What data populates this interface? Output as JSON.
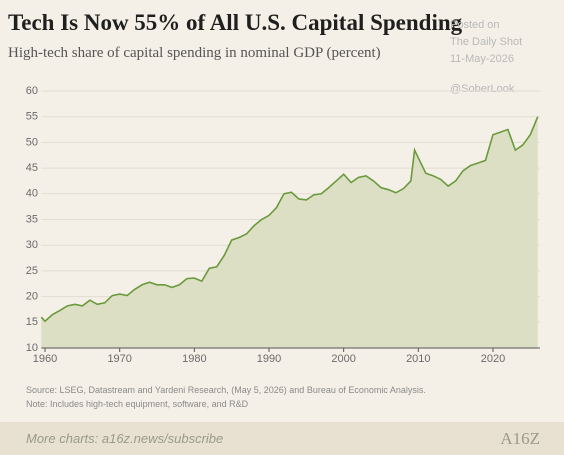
{
  "chart_data": {
    "type": "area",
    "title": "Tech Is Now 55% of All U.S. Capital Spending",
    "subtitle": "High-tech share of capital spending in nominal GDP (percent)",
    "watermark": [
      "Posted on",
      "The Daily Shot",
      "11-May-2026",
      "@SoberLook"
    ],
    "source": "Source: LSEG, Datastream and Yardeni Research, (May 5, 2026) and Bureau of Economic Analysis.",
    "note": "Note: Includes high-tech equipment, software, and R&D",
    "footer": "More charts: a16z.news/subscribe",
    "logo": "A16Z",
    "x": [
      1959.5,
      1960,
      1961,
      1962,
      1963,
      1964,
      1965,
      1966,
      1967,
      1968,
      1969,
      1970,
      1971,
      1972,
      1973,
      1974,
      1975,
      1976,
      1977,
      1978,
      1979,
      1980,
      1981,
      1982,
      1983,
      1984,
      1985,
      1986,
      1987,
      1988,
      1989,
      1990,
      1991,
      1992,
      1993,
      1994,
      1995,
      1996,
      1997,
      1998,
      1999,
      2000,
      2001,
      2002,
      2003,
      2004,
      2005,
      2006,
      2007,
      2008,
      2009,
      2009.5,
      2010,
      2011,
      2012,
      2013,
      2014,
      2015,
      2016,
      2017,
      2018,
      2019,
      2020,
      2021,
      2022,
      2022.5,
      2023,
      2024,
      2025,
      2026
    ],
    "values": [
      16,
      15.2,
      16.5,
      17.3,
      18.2,
      18.5,
      18.2,
      19.3,
      18.5,
      18.8,
      20.2,
      20.5,
      20.2,
      21.4,
      22.3,
      22.8,
      22.3,
      22.3,
      21.8,
      22.3,
      23.5,
      23.6,
      23,
      25.5,
      25.8,
      28,
      31,
      31.5,
      32.2,
      33.8,
      35,
      35.8,
      37.3,
      40,
      40.3,
      39,
      38.8,
      39.8,
      40,
      41.2,
      42.5,
      43.8,
      42.2,
      43.2,
      43.5,
      42.5,
      41.2,
      40.8,
      40.2,
      41,
      42.5,
      48.5,
      47,
      44,
      43.5,
      42.8,
      41.5,
      42.5,
      44.5,
      45.5,
      46,
      46.5,
      51.5,
      52,
      52.5,
      50.5,
      48.5,
      49.5,
      51.5,
      55
    ],
    "color": "#6a9a3c",
    "fill": "#dcdfc3",
    "xlim": [
      1959.5,
      2026.3
    ],
    "ylim": [
      10,
      60
    ],
    "xticks": [
      1960,
      1970,
      1980,
      1990,
      2000,
      2010,
      2020
    ],
    "yticks": [
      10,
      15,
      20,
      25,
      30,
      35,
      40,
      45,
      50,
      55,
      60
    ],
    "grid": true
  }
}
